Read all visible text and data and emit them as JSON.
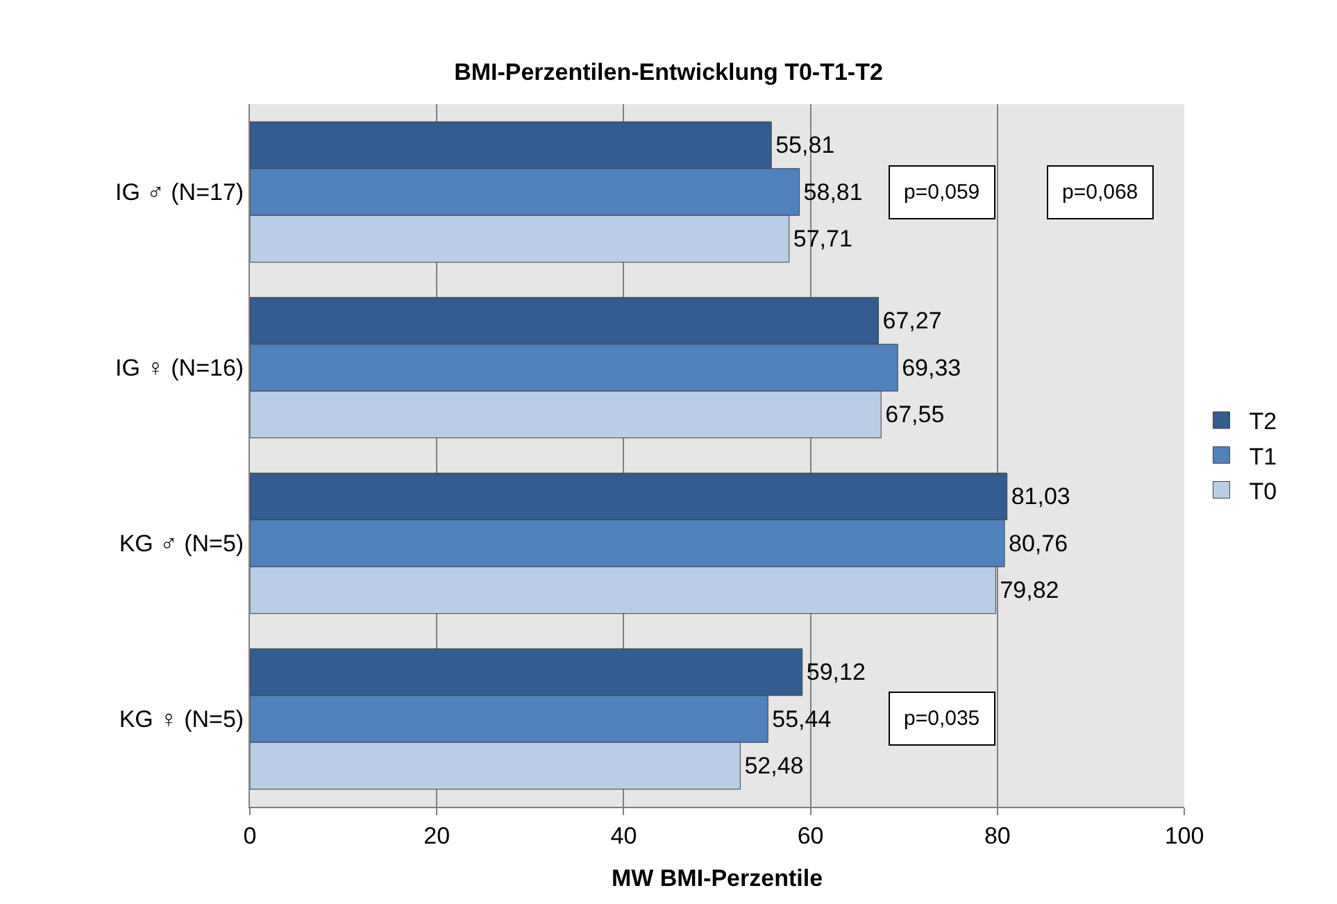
{
  "chart_data": {
    "type": "bar",
    "orientation": "horizontal",
    "title": "BMI-Perzentilen-Entwicklung T0-T1-T2",
    "xlabel": "MW BMI-Perzentile",
    "categories": [
      "IG ♂ (N=17)",
      "IG ♀ (N=16)",
      "KG ♂ (N=5)",
      "KG ♀ (N=5)"
    ],
    "series": [
      {
        "name": "T2",
        "color": "#335c91",
        "values": [
          55.81,
          67.27,
          81.03,
          59.12
        ],
        "value_labels": [
          "55,81",
          "67,27",
          "81,03",
          "59,12"
        ]
      },
      {
        "name": "T1",
        "color": "#4f81bd",
        "values": [
          58.81,
          69.33,
          80.76,
          55.44
        ],
        "value_labels": [
          "58,81",
          "69,33",
          "80,76",
          "55,44"
        ]
      },
      {
        "name": "T0",
        "color": "#b9cde5",
        "values": [
          57.71,
          67.55,
          79.82,
          52.48
        ],
        "value_labels": [
          "57,71",
          "67,55",
          "79,82",
          "52,48"
        ]
      }
    ],
    "xlim": [
      0,
      100
    ],
    "xticks": [
      0,
      20,
      40,
      60,
      80,
      100
    ],
    "grid": "x",
    "legend": "right",
    "annotations": [
      "p=0,059",
      "p=0,068",
      "p=0,035"
    ]
  }
}
